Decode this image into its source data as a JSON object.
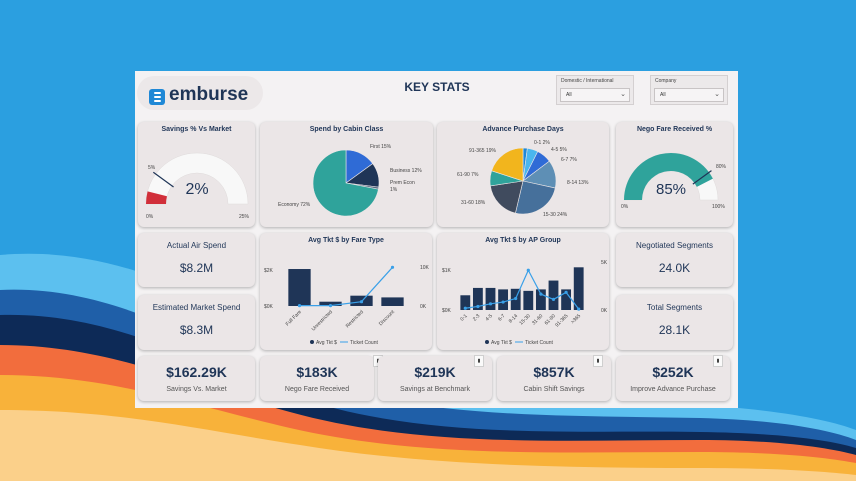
{
  "colors": {
    "background": "#2b9fe0",
    "navy": "#1f3557",
    "teal": "#2fa39b",
    "red": "#d12f3a",
    "blue": "#1f88d6",
    "line": "#3aa0e8",
    "card": "#ebe6e7"
  },
  "brand": {
    "logo_text": "emburse",
    "logo_icon": "emburse-e-icon"
  },
  "header": {
    "title": "KEY STATS"
  },
  "filters": [
    {
      "label": "Domestic / International",
      "value": "All",
      "icon": "chevron-down-icon"
    },
    {
      "label": "Company",
      "value": "All",
      "icon": "chevron-down-icon"
    }
  ],
  "savings_gauge": {
    "title": "Savings % Vs Market",
    "value_label": "2%",
    "min_label": "0%",
    "max_label": "25%",
    "target_label": "5%",
    "chart_data": {
      "type": "gauge",
      "value": 2,
      "min": 0,
      "max": 25,
      "target": 5
    }
  },
  "cabin_pie": {
    "title": "Spend by Cabin Class",
    "labels": {
      "first": "First 15%",
      "business": "Business 12%",
      "prem_econ_1": "Prem Econ",
      "prem_econ_2": "1%",
      "economy": "Economy 72%"
    },
    "chart_data": {
      "type": "pie",
      "slices": [
        {
          "name": "First",
          "value": 15,
          "color": "#2f6bd6"
        },
        {
          "name": "Business",
          "value": 12,
          "color": "#1f3557"
        },
        {
          "name": "Prem Econ",
          "value": 1,
          "color": "#5a6b84"
        },
        {
          "name": "Economy",
          "value": 72,
          "color": "#2fa39b"
        }
      ]
    }
  },
  "advance_pie": {
    "title": "Advance Purchase Days",
    "labels": [
      "0-1 2%",
      "4-5 5%",
      "6-7 7%",
      "8-14 13%",
      "15-30 24%",
      "31-60 18%",
      "61-90 7%",
      "91-365 19%"
    ],
    "chart_data": {
      "type": "pie",
      "slices": [
        {
          "name": "0-1",
          "value": 2,
          "color": "#1f88d6"
        },
        {
          "name": "4-5",
          "value": 5,
          "color": "#49b6ee"
        },
        {
          "name": "6-7",
          "value": 7,
          "color": "#2f6bd6"
        },
        {
          "name": "8-14",
          "value": 13,
          "color": "#5e8fb5"
        },
        {
          "name": "15-30",
          "value": 24,
          "color": "#46709b"
        },
        {
          "name": "31-60",
          "value": 18,
          "color": "#404b5e"
        },
        {
          "name": "61-90",
          "value": 7,
          "color": "#2fa39b"
        },
        {
          "name": "91-365",
          "value": 19,
          "color": "#f2b51d"
        }
      ]
    }
  },
  "nego_gauge": {
    "title": "Nego Fare Received %",
    "value_label": "85%",
    "min_label": "0%",
    "max_label": "100%",
    "target_label": "80%",
    "chart_data": {
      "type": "gauge",
      "value": 85,
      "min": 0,
      "max": 100,
      "target": 80
    }
  },
  "kpis": {
    "actual_air_spend": {
      "label": "Actual Air Spend",
      "value": "$8.2M"
    },
    "estimated_market_spend": {
      "label": "Estimated Market Spend",
      "value": "$8.3M"
    },
    "negotiated_segments": {
      "label": "Negotiated Segments",
      "value": "24.0K"
    },
    "total_segments": {
      "label": "Total Segments",
      "value": "28.1K"
    }
  },
  "fare_chart": {
    "title": "Avg Tkt $ by Fare Type",
    "legend": {
      "bar": "Avg Tkt $",
      "line": "Ticket Count"
    },
    "left_ticks": [
      "$2K",
      "$0K"
    ],
    "right_ticks": [
      "10K",
      "0K"
    ],
    "chart_data": {
      "type": "bar",
      "categories": [
        "Full Fare",
        "Unrestricted",
        "Restricted",
        "Discount"
      ],
      "series": [
        {
          "name": "Avg Tkt $",
          "values": [
            2150,
            250,
            600,
            500
          ]
        },
        {
          "name": "Ticket Count",
          "values": [
            100,
            100,
            1200,
            10800
          ]
        }
      ],
      "ylim": [
        0,
        2500
      ],
      "y2lim": [
        0,
        12000
      ]
    }
  },
  "ap_chart": {
    "title": "Avg Tkt $ by AP Group",
    "legend": {
      "bar": "Avg Tkt $",
      "line": "Ticket Count"
    },
    "left_ticks": [
      "$1K",
      "$0K"
    ],
    "right_ticks": [
      "5K",
      "0K"
    ],
    "chart_data": {
      "type": "bar",
      "categories": [
        "0-1",
        "2-3",
        "4-5",
        "6-7",
        "8-14",
        "15-30",
        "31-60",
        "61-90",
        "91-365",
        ">365"
      ],
      "series": [
        {
          "name": "Avg Tkt $",
          "values": [
            500,
            750,
            750,
            700,
            720,
            650,
            700,
            1000,
            700,
            1450
          ]
        },
        {
          "name": "Ticket Count",
          "values": [
            200,
            400,
            700,
            900,
            1300,
            4500,
            1800,
            1200,
            2000,
            100
          ]
        }
      ],
      "ylim": [
        0,
        1800
      ],
      "y2lim": [
        0,
        6000
      ]
    }
  },
  "bottom_kpis": [
    {
      "value": "$162.29K",
      "label": "Savings Vs. Market",
      "pinned": false
    },
    {
      "value": "$183K",
      "label": "Nego Fare Received",
      "pinned": true
    },
    {
      "value": "$219K",
      "label": "Savings at Benchmark",
      "pinned": true
    },
    {
      "value": "$857K",
      "label": "Cabin Shift Savings",
      "pinned": true
    },
    {
      "value": "$252K",
      "label": "Improve Advance Purchase",
      "pinned": true
    }
  ],
  "pin_glyph": "▮"
}
